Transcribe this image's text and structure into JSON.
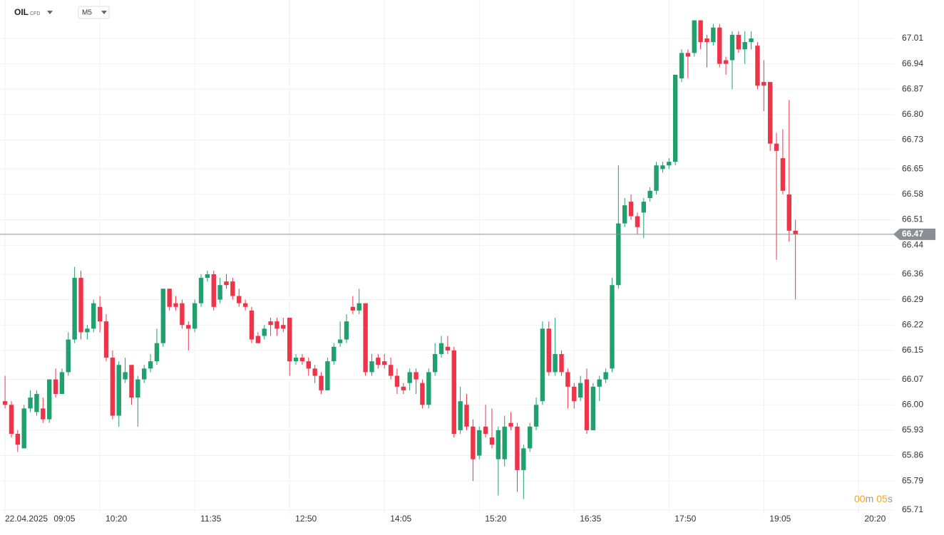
{
  "chart_data": {
    "type": "candlestick",
    "instrument": "OIL",
    "instrument_type": "CFD",
    "timeframe": "M5",
    "date_label": "22.04.2025",
    "open": [
      66.01,
      66.0,
      65.92,
      65.88,
      65.99,
      65.98,
      65.99,
      65.96,
      66.07,
      66.03,
      66.09,
      66.18,
      66.35,
      66.2,
      66.21,
      66.27,
      66.23,
      66.13,
      65.97,
      66.07,
      66.11,
      66.02,
      66.07,
      66.1,
      66.12,
      66.17,
      66.32,
      66.28,
      66.28,
      66.22,
      66.21,
      66.28,
      66.35,
      66.36,
      66.29,
      66.34,
      66.34,
      66.3,
      66.28,
      66.26,
      66.19,
      66.19,
      66.23,
      66.23,
      66.22,
      66.24,
      66.12,
      66.13,
      66.12,
      66.1,
      66.08,
      66.04,
      66.12,
      66.17,
      66.18,
      66.27,
      66.26,
      66.28,
      66.09,
      66.13,
      66.12,
      66.11,
      66.08,
      66.05,
      66.06,
      66.09,
      66.06,
      66.0,
      66.09,
      66.14,
      66.16,
      66.15,
      65.93,
      66.0,
      65.94,
      65.86,
      65.94,
      65.91,
      65.85,
      65.85,
      65.95,
      65.94,
      65.82,
      65.88,
      65.94,
      66.01,
      66.21,
      66.09,
      66.14,
      66.09,
      66.05,
      66.02,
      66.07,
      65.93,
      66.05,
      66.07,
      66.1,
      66.33,
      66.5,
      66.56,
      66.52,
      66.53,
      66.57,
      66.59,
      66.65,
      66.66,
      66.67,
      66.9,
      66.97,
      66.97,
      67.06,
      67.01,
      67.0,
      67.04,
      66.95,
      66.95,
      67.02,
      66.98,
      67.0,
      66.99,
      66.89,
      66.89,
      66.72,
      66.68,
      66.58,
      66.48
    ],
    "high": [
      66.08,
      66.01,
      65.93,
      66.0,
      66.04,
      66.04,
      66.02,
      66.07,
      66.1,
      66.1,
      66.2,
      66.38,
      66.37,
      66.22,
      66.29,
      66.3,
      66.25,
      66.15,
      66.12,
      66.13,
      66.11,
      66.08,
      66.11,
      66.14,
      66.21,
      66.32,
      66.32,
      66.3,
      66.29,
      66.23,
      66.29,
      66.36,
      66.37,
      66.37,
      66.35,
      66.36,
      66.35,
      66.32,
      66.29,
      66.27,
      66.2,
      66.22,
      66.24,
      66.24,
      66.24,
      66.24,
      66.14,
      66.14,
      66.13,
      66.11,
      66.09,
      66.13,
      66.17,
      66.23,
      66.25,
      66.3,
      66.32,
      66.28,
      66.14,
      66.14,
      66.14,
      66.13,
      66.1,
      66.06,
      66.1,
      66.1,
      66.07,
      66.1,
      66.17,
      66.19,
      66.19,
      66.16,
      66.05,
      66.03,
      65.96,
      65.94,
      66.0,
      65.99,
      65.94,
      65.97,
      65.98,
      65.95,
      65.89,
      65.95,
      66.02,
      66.23,
      66.23,
      66.24,
      66.15,
      66.1,
      66.06,
      66.08,
      66.1,
      66.06,
      66.08,
      66.1,
      66.35,
      66.66,
      66.57,
      66.58,
      66.53,
      66.57,
      66.6,
      66.67,
      66.67,
      66.68,
      66.91,
      66.98,
      66.98,
      67.06,
      67.06,
      67.02,
      67.05,
      67.05,
      66.96,
      67.03,
      67.03,
      67.03,
      67.03,
      67.0,
      66.95,
      66.89,
      66.75,
      66.76,
      66.84,
      66.51
    ],
    "low": [
      65.99,
      65.91,
      65.87,
      65.88,
      65.98,
      65.97,
      65.95,
      65.95,
      66.02,
      66.03,
      66.08,
      66.17,
      66.18,
      66.18,
      66.2,
      66.2,
      66.12,
      65.96,
      65.94,
      66.06,
      66.0,
      65.94,
      66.06,
      66.09,
      66.11,
      66.16,
      66.26,
      66.26,
      66.21,
      66.15,
      66.2,
      66.27,
      66.34,
      66.26,
      66.28,
      66.32,
      66.29,
      66.27,
      66.26,
      66.17,
      66.17,
      66.18,
      66.19,
      66.19,
      66.2,
      66.08,
      66.11,
      66.11,
      66.08,
      66.06,
      66.03,
      66.04,
      66.11,
      66.16,
      66.17,
      66.25,
      66.25,
      66.08,
      66.08,
      66.1,
      66.1,
      66.07,
      66.03,
      66.03,
      66.04,
      66.03,
      65.99,
      65.99,
      66.08,
      66.13,
      66.14,
      65.91,
      65.92,
      65.93,
      65.79,
      65.85,
      65.91,
      65.88,
      65.75,
      65.83,
      65.93,
      65.76,
      65.74,
      65.87,
      65.93,
      66.0,
      66.08,
      66.08,
      66.08,
      65.99,
      65.99,
      66.01,
      65.92,
      65.93,
      66.01,
      66.06,
      66.09,
      66.32,
      66.49,
      66.51,
      66.47,
      66.46,
      66.56,
      66.58,
      66.64,
      66.65,
      66.66,
      66.89,
      66.9,
      66.96,
      66.98,
      66.93,
      66.99,
      66.93,
      66.91,
      66.87,
      66.97,
      66.94,
      66.98,
      66.87,
      66.81,
      66.7,
      66.4,
      66.58,
      66.45,
      66.29
    ],
    "close": [
      66.0,
      65.92,
      65.89,
      65.99,
      66.02,
      66.03,
      65.96,
      66.07,
      66.03,
      66.09,
      66.18,
      66.35,
      66.2,
      66.21,
      66.28,
      66.23,
      66.13,
      65.97,
      66.11,
      66.09,
      66.02,
      66.07,
      66.1,
      66.12,
      66.17,
      66.32,
      66.27,
      66.27,
      66.22,
      66.21,
      66.28,
      66.35,
      66.36,
      66.27,
      66.33,
      66.33,
      66.3,
      66.28,
      66.27,
      66.18,
      66.17,
      66.21,
      66.22,
      66.21,
      66.21,
      66.12,
      66.13,
      66.12,
      66.1,
      66.08,
      66.04,
      66.12,
      66.16,
      66.18,
      66.23,
      66.26,
      66.28,
      66.09,
      66.12,
      66.11,
      66.11,
      66.08,
      66.05,
      66.04,
      66.09,
      66.07,
      66.0,
      66.09,
      66.14,
      66.17,
      66.15,
      65.92,
      66.01,
      65.94,
      65.85,
      65.93,
      65.92,
      65.89,
      65.93,
      65.94,
      65.94,
      65.82,
      65.88,
      65.94,
      66.0,
      66.21,
      66.09,
      66.14,
      66.09,
      66.05,
      66.01,
      66.06,
      65.93,
      66.05,
      66.07,
      66.09,
      66.33,
      66.5,
      66.55,
      66.52,
      66.49,
      66.56,
      66.59,
      66.66,
      66.66,
      66.67,
      66.91,
      66.97,
      66.96,
      67.06,
      67.0,
      67.0,
      67.04,
      66.94,
      66.94,
      67.02,
      66.98,
      67.0,
      67.01,
      66.88,
      66.88,
      66.72,
      66.7,
      66.59,
      66.48,
      66.47
    ],
    "xlim": [
      -0.8,
      140.6
    ],
    "xticks": [
      {
        "value": 0,
        "label": "09:05"
      },
      {
        "value": 15,
        "label": "10:20"
      },
      {
        "value": 30,
        "label": "11:35"
      },
      {
        "value": 45,
        "label": "12:50"
      },
      {
        "value": 60,
        "label": "14:05"
      },
      {
        "value": 75,
        "label": "15:20"
      },
      {
        "value": 90,
        "label": "16:35"
      },
      {
        "value": 105,
        "label": "17:50"
      },
      {
        "value": 120,
        "label": "19:05"
      },
      {
        "value": 135,
        "label": "20:20"
      }
    ],
    "ylim": [
      65.7,
      67.116
    ],
    "yticks": [
      67.01,
      66.94,
      66.87,
      {
        "value": 66.8,
        "label": "66.80"
      },
      66.73,
      66.65,
      66.58,
      66.51,
      66.44,
      66.36,
      66.29,
      66.22,
      66.15,
      66.07,
      {
        "value": 66.0,
        "label": "66.00"
      },
      65.93,
      65.86,
      65.79,
      65.71
    ],
    "grid": true,
    "up_color": "#1fa06d",
    "down_color": "#ef3349",
    "current_price": 66.47,
    "countdown": [
      "00",
      "m",
      "05",
      "s"
    ]
  }
}
